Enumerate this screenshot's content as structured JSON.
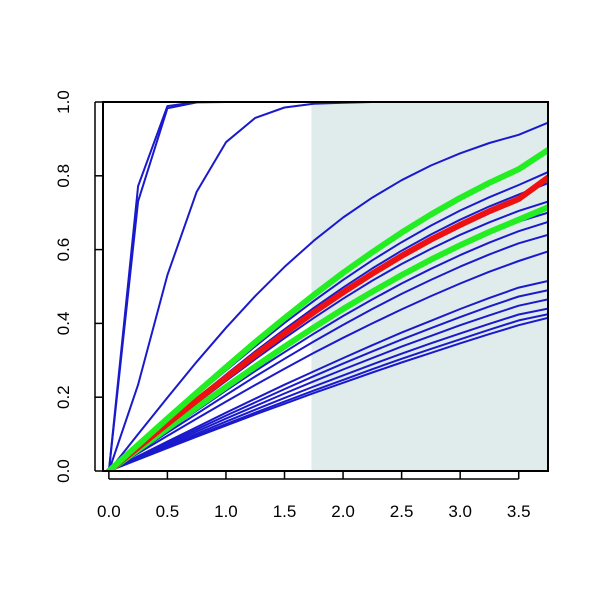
{
  "chart_data": {
    "type": "line",
    "title": "",
    "xlabel": "",
    "ylabel": "",
    "xlim": [
      -0.05,
      3.75
    ],
    "ylim": [
      0.0,
      1.0
    ],
    "x_ticks": [
      "0.0",
      "0.5",
      "1.0",
      "1.5",
      "2.0",
      "2.5",
      "3.0",
      "3.5"
    ],
    "y_ticks": [
      "0.0",
      "0.2",
      "0.4",
      "0.6",
      "0.8",
      "1.0"
    ],
    "shaded_region": {
      "x_from": 1.73,
      "x_to": 3.75,
      "color": "#e0ecec"
    },
    "grid": false,
    "legend": "none",
    "colors": {
      "blue": "#1a1acc",
      "red": "#ee1111",
      "green": "#22ee22"
    },
    "x": [
      0,
      0.25,
      0.5,
      0.75,
      1.0,
      1.25,
      1.5,
      1.75,
      2.0,
      2.25,
      2.5,
      2.75,
      3.0,
      3.25,
      3.5,
      3.75
    ],
    "series": [
      {
        "color": "blue",
        "width": 2,
        "values": [
          0,
          0.731,
          0.983,
          0.999,
          1.0,
          1.0,
          1.0,
          1.0,
          1.0,
          1.0,
          1.0,
          1.0,
          1.0,
          1.0,
          1.0,
          1.0
        ]
      },
      {
        "color": "blue",
        "width": 2,
        "values": [
          0,
          0.772,
          0.989,
          1.0,
          1.0,
          1.0,
          1.0,
          1.0,
          1.0,
          1.0,
          1.0,
          1.0,
          1.0,
          1.0,
          1.0,
          1.0
        ]
      },
      {
        "color": "blue",
        "width": 2,
        "values": [
          0,
          0.234,
          0.531,
          0.757,
          0.891,
          0.957,
          0.985,
          0.995,
          0.998,
          1.0,
          1.0,
          1.0,
          1.0,
          1.0,
          1.0,
          1.0
        ]
      },
      {
        "color": "blue",
        "width": 2,
        "values": [
          0,
          0.1,
          0.199,
          0.296,
          0.388,
          0.474,
          0.553,
          0.624,
          0.687,
          0.741,
          0.788,
          0.828,
          0.861,
          0.889,
          0.911,
          0.944
        ]
      },
      {
        "color": "blue",
        "width": 2,
        "values": [
          0,
          0.061,
          0.123,
          0.184,
          0.244,
          0.303,
          0.36,
          0.415,
          0.467,
          0.516,
          0.561,
          0.602,
          0.64,
          0.674,
          0.705,
          0.73
        ]
      },
      {
        "color": "blue",
        "width": 2,
        "values": [
          0,
          0.066,
          0.132,
          0.197,
          0.261,
          0.324,
          0.384,
          0.442,
          0.497,
          0.549,
          0.597,
          0.641,
          0.681,
          0.717,
          0.749,
          0.78
        ]
      },
      {
        "color": "blue",
        "width": 2,
        "values": [
          0,
          0.069,
          0.138,
          0.206,
          0.273,
          0.338,
          0.401,
          0.461,
          0.518,
          0.571,
          0.62,
          0.665,
          0.706,
          0.742,
          0.775,
          0.81
        ]
      },
      {
        "color": "blue",
        "width": 2,
        "values": [
          0,
          0.058,
          0.116,
          0.173,
          0.23,
          0.286,
          0.34,
          0.392,
          0.442,
          0.489,
          0.533,
          0.574,
          0.611,
          0.645,
          0.676,
          0.7
        ]
      },
      {
        "color": "blue",
        "width": 2,
        "values": [
          0,
          0.055,
          0.11,
          0.164,
          0.218,
          0.271,
          0.322,
          0.372,
          0.42,
          0.465,
          0.508,
          0.548,
          0.585,
          0.619,
          0.65,
          0.675
        ]
      },
      {
        "color": "blue",
        "width": 2,
        "values": [
          0,
          0.052,
          0.104,
          0.155,
          0.206,
          0.256,
          0.304,
          0.351,
          0.396,
          0.439,
          0.48,
          0.518,
          0.554,
          0.587,
          0.617,
          0.64
        ]
      },
      {
        "color": "blue",
        "width": 2,
        "values": [
          0,
          0.048,
          0.095,
          0.142,
          0.188,
          0.233,
          0.277,
          0.32,
          0.361,
          0.4,
          0.438,
          0.474,
          0.508,
          0.54,
          0.569,
          0.595
        ]
      },
      {
        "color": "blue",
        "width": 2,
        "values": [
          0,
          0.034,
          0.068,
          0.101,
          0.134,
          0.166,
          0.198,
          0.229,
          0.259,
          0.289,
          0.318,
          0.346,
          0.373,
          0.399,
          0.424,
          0.44
        ]
      },
      {
        "color": "blue",
        "width": 2,
        "values": [
          0,
          0.036,
          0.072,
          0.107,
          0.142,
          0.176,
          0.21,
          0.243,
          0.275,
          0.306,
          0.337,
          0.366,
          0.395,
          0.422,
          0.448,
          0.465
        ]
      },
      {
        "color": "blue",
        "width": 2,
        "values": [
          0,
          0.038,
          0.076,
          0.113,
          0.15,
          0.186,
          0.222,
          0.257,
          0.291,
          0.324,
          0.356,
          0.387,
          0.417,
          0.446,
          0.473,
          0.49
        ]
      },
      {
        "color": "blue",
        "width": 2,
        "values": [
          0,
          0.04,
          0.08,
          0.119,
          0.158,
          0.196,
          0.234,
          0.27,
          0.306,
          0.341,
          0.375,
          0.407,
          0.439,
          0.469,
          0.497,
          0.515
        ]
      },
      {
        "color": "blue",
        "width": 2,
        "values": [
          0,
          0.031,
          0.062,
          0.093,
          0.123,
          0.153,
          0.182,
          0.211,
          0.239,
          0.267,
          0.294,
          0.32,
          0.346,
          0.371,
          0.395,
          0.415
        ]
      },
      {
        "color": "blue",
        "width": 2,
        "values": [
          0,
          0.032,
          0.064,
          0.096,
          0.127,
          0.158,
          0.188,
          0.218,
          0.247,
          0.276,
          0.304,
          0.331,
          0.357,
          0.383,
          0.408,
          0.425
        ]
      },
      {
        "color": "green",
        "width": 6,
        "values": [
          0,
          0.058,
          0.115,
          0.172,
          0.228,
          0.283,
          0.337,
          0.389,
          0.439,
          0.486,
          0.531,
          0.573,
          0.612,
          0.648,
          0.681,
          0.715
        ]
      },
      {
        "color": "red",
        "width": 6,
        "values": [
          0,
          0.064,
          0.128,
          0.191,
          0.253,
          0.314,
          0.373,
          0.43,
          0.484,
          0.535,
          0.583,
          0.627,
          0.667,
          0.704,
          0.737,
          0.795
        ]
      },
      {
        "color": "green",
        "width": 6,
        "values": [
          0,
          0.071,
          0.142,
          0.212,
          0.281,
          0.349,
          0.414,
          0.477,
          0.537,
          0.593,
          0.646,
          0.695,
          0.74,
          0.781,
          0.818,
          0.87
        ]
      }
    ]
  }
}
